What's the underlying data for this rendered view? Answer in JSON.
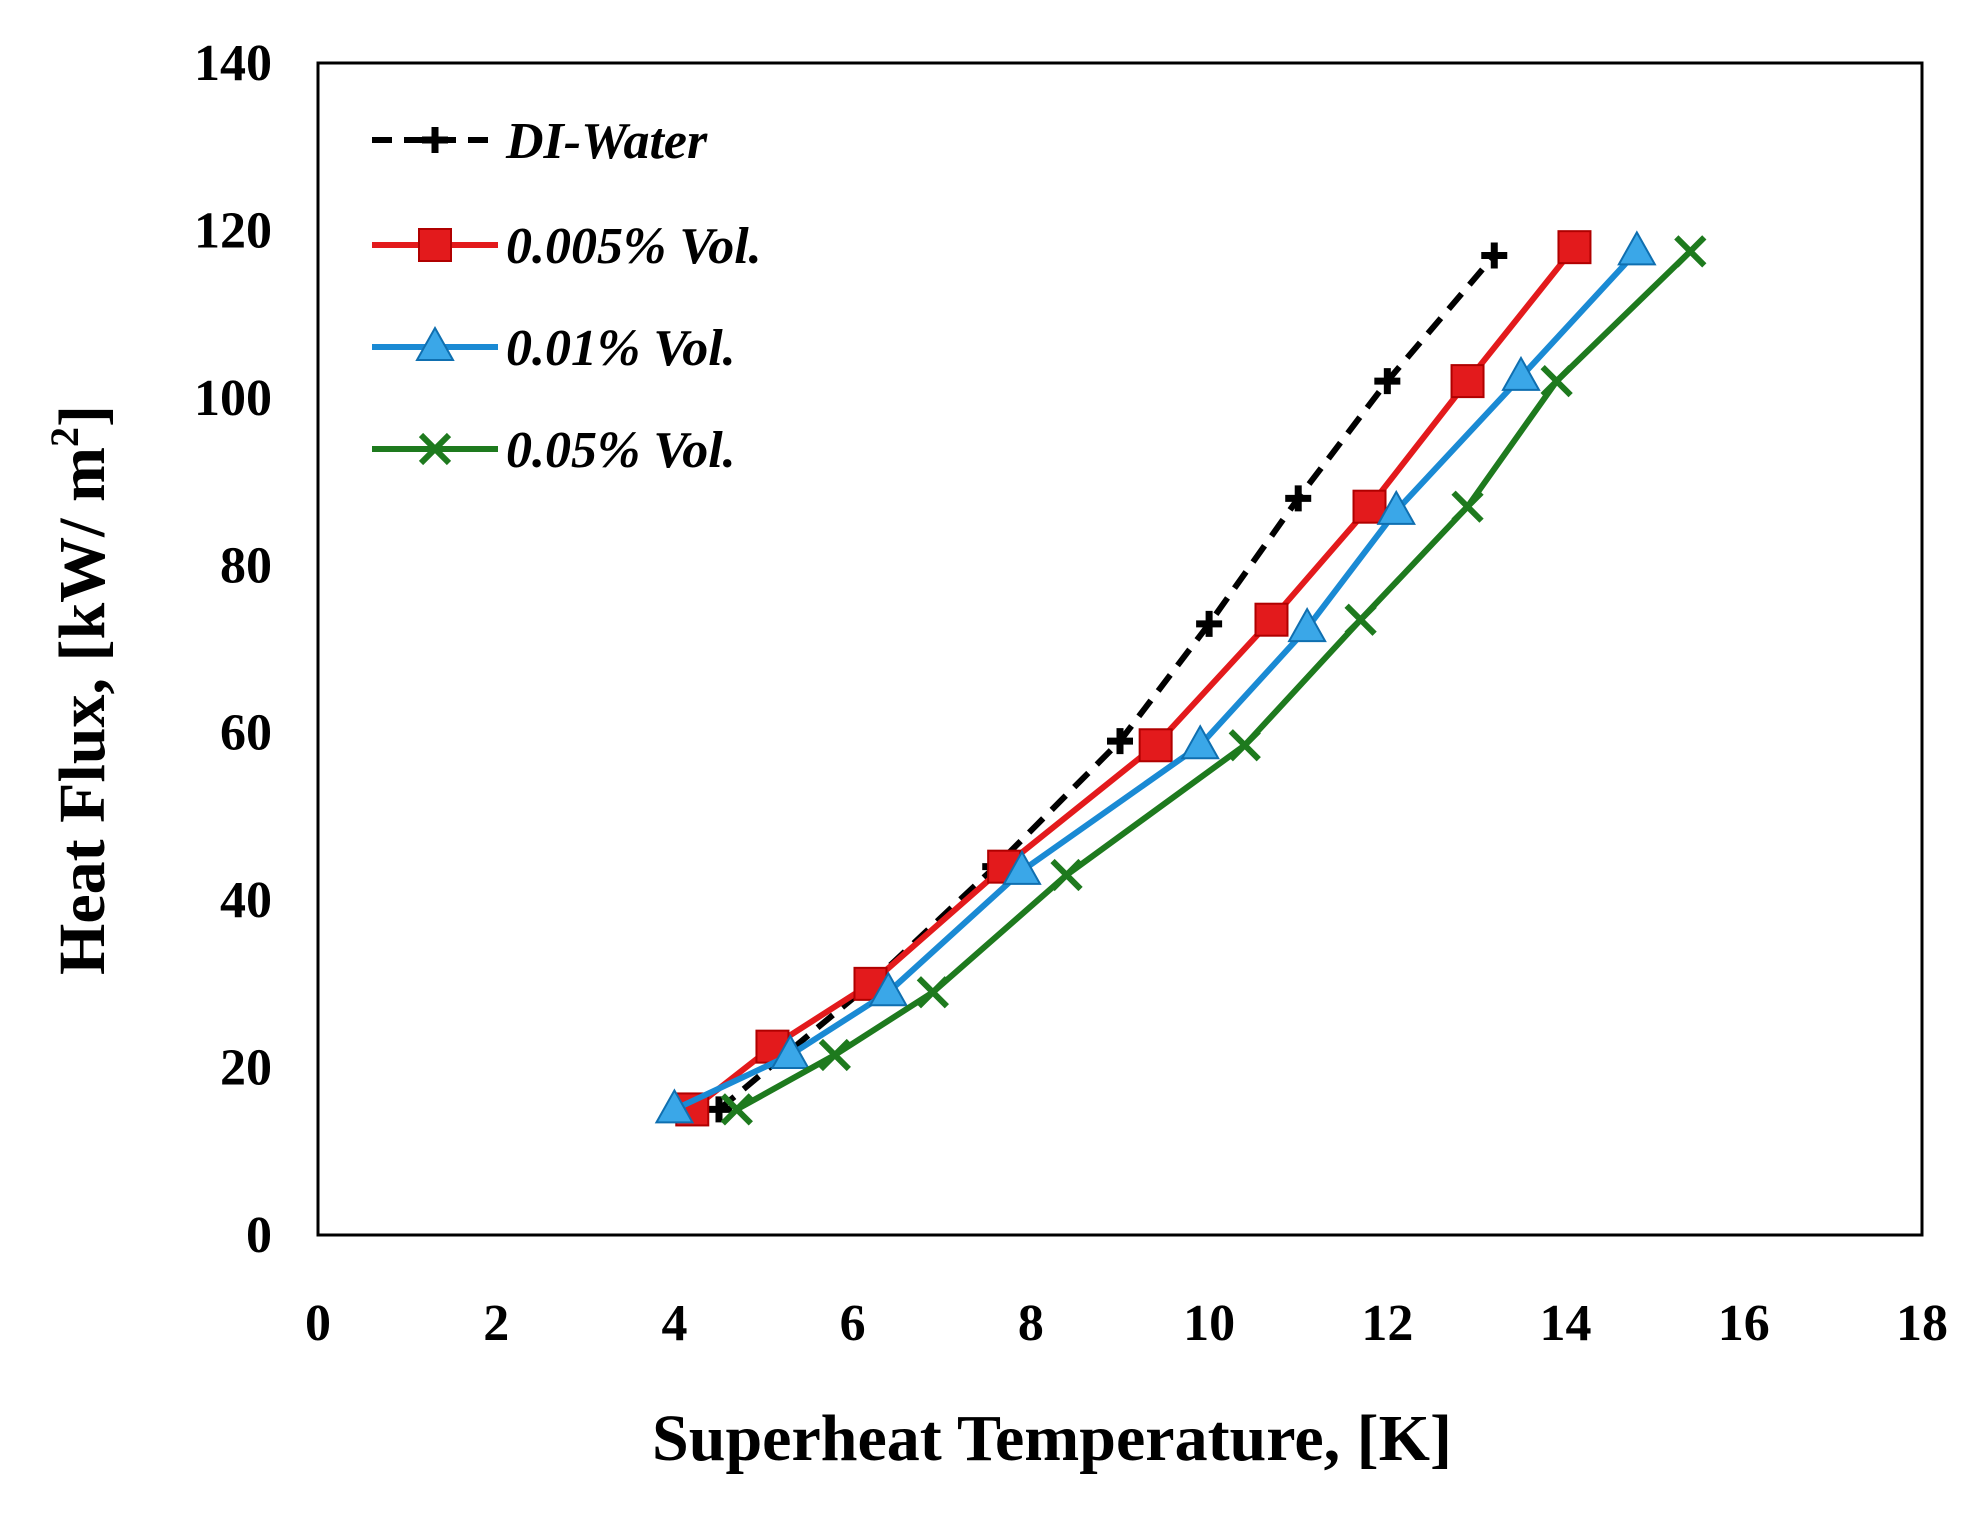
{
  "chart_data": {
    "type": "line",
    "title": "",
    "xlabel": "Superheat Temperature, [K]",
    "ylabel": "Heat Flux, [kW/ m",
    "ylabel_sup": "2",
    "ylabel_end": "]",
    "xlim": [
      0,
      18
    ],
    "ylim": [
      0,
      140
    ],
    "xticks": [
      0,
      2,
      4,
      6,
      8,
      10,
      12,
      14,
      16,
      18
    ],
    "yticks": [
      0,
      20,
      40,
      60,
      80,
      100,
      120,
      140
    ],
    "grid": false,
    "legend_position": "top-left",
    "series": [
      {
        "name": "DI-Water",
        "color": "#000000",
        "dash": true,
        "marker": "diamond",
        "x": [
          4.5,
          6.2,
          7.6,
          9.0,
          10.0,
          11.0,
          12.0,
          13.2
        ],
        "y": [
          15,
          30,
          44,
          59,
          73,
          88,
          102,
          117
        ]
      },
      {
        "name": "0.005% Vol.",
        "color": "#e31a1c",
        "dash": false,
        "marker": "square",
        "x": [
          4.2,
          5.1,
          6.2,
          7.7,
          9.4,
          10.7,
          11.8,
          12.9,
          14.1
        ],
        "y": [
          15,
          22.5,
          30,
          44,
          58.5,
          73.5,
          87,
          102,
          118
        ]
      },
      {
        "name": "0.01% Vol.",
        "color": "#1a8ad4",
        "dash": false,
        "marker": "triangle",
        "x": [
          4.0,
          5.3,
          6.4,
          7.9,
          9.9,
          11.1,
          12.1,
          13.5,
          14.8
        ],
        "y": [
          15,
          21.5,
          29,
          43.5,
          58.5,
          72.5,
          86.5,
          102.5,
          117.5
        ]
      },
      {
        "name": "0.05% Vol.",
        "color": "#1e7a1e",
        "dash": false,
        "marker": "x",
        "x": [
          4.7,
          5.8,
          6.9,
          8.4,
          10.4,
          11.7,
          12.9,
          13.9,
          15.4
        ],
        "y": [
          15,
          21.5,
          29,
          43,
          58.5,
          73.5,
          87,
          102,
          117.5
        ]
      }
    ]
  }
}
